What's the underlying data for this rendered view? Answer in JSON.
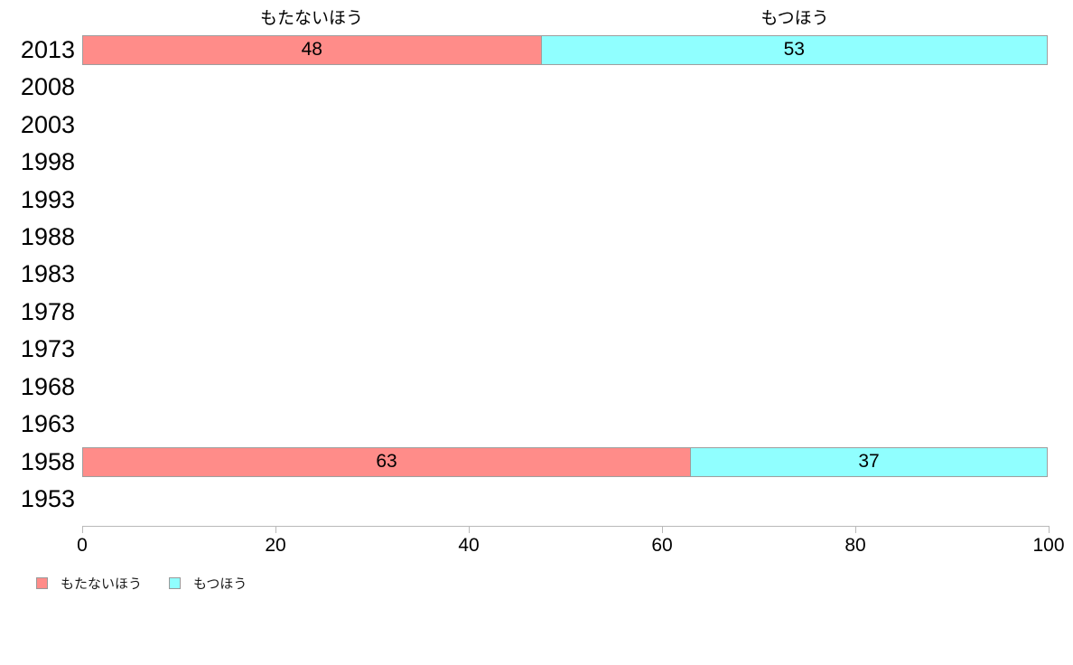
{
  "chart_data": {
    "type": "bar",
    "orientation": "horizontal",
    "stacked": true,
    "title": "",
    "column_headers": [
      "もたないほう",
      "もつほう"
    ],
    "categories": [
      "2013",
      "2008",
      "2003",
      "1998",
      "1993",
      "1988",
      "1983",
      "1978",
      "1973",
      "1968",
      "1963",
      "1958",
      "1953"
    ],
    "series": [
      {
        "name": "もたないほう",
        "color": "#ff8c89",
        "values": [
          48,
          null,
          null,
          null,
          null,
          null,
          null,
          null,
          null,
          null,
          null,
          63,
          null
        ]
      },
      {
        "name": "もつほう",
        "color": "#90ffff",
        "values": [
          53,
          null,
          null,
          null,
          null,
          null,
          null,
          null,
          null,
          null,
          null,
          37,
          null
        ]
      }
    ],
    "xlabel": "",
    "ylabel": "",
    "xlim": [
      0,
      100
    ],
    "x_ticks": [
      0,
      20,
      40,
      60,
      80,
      100
    ],
    "grid": false,
    "legend_position": "bottom-left",
    "bar_border_color": "#9e9e9e",
    "axis_color": "#b9b9b9",
    "background_color": "#ffffff"
  },
  "legend": {
    "items": [
      {
        "label": "もたないほう",
        "color": "#ff8c89"
      },
      {
        "label": "もつほう",
        "color": "#90ffff"
      }
    ]
  }
}
